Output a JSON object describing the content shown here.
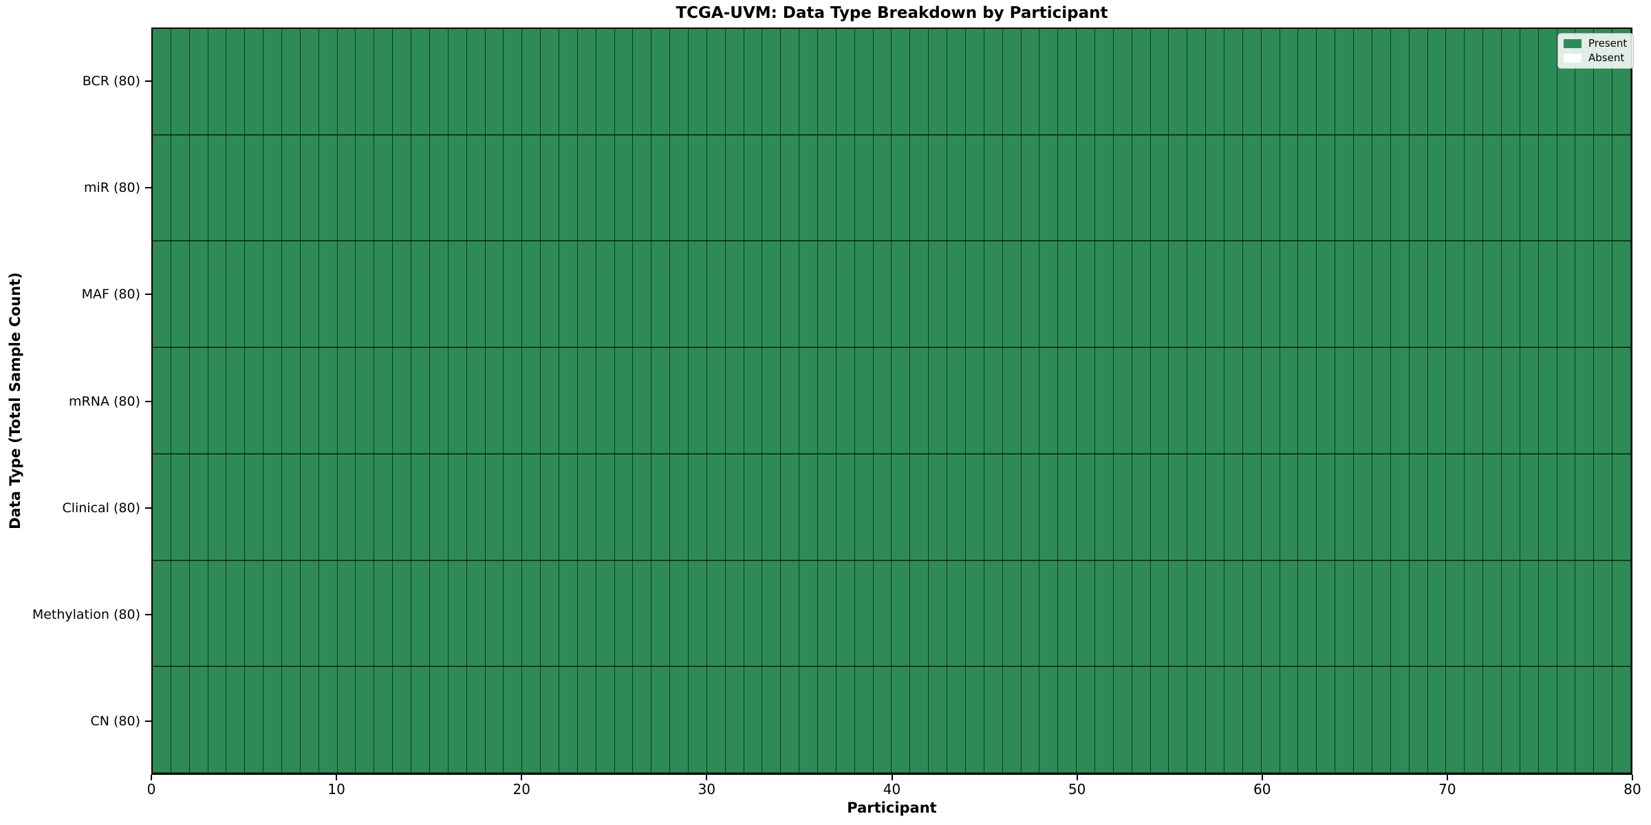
{
  "figure": {
    "title": "TCGA-UVM: Data Type Breakdown by Participant",
    "xlabel": "Participant",
    "ylabel": "Data Type (Total Sample Count)"
  },
  "legend": {
    "position": "upper right",
    "items": [
      {
        "label": "Present",
        "color": "#2e8b57"
      },
      {
        "label": "Absent",
        "color": "#ffffff"
      }
    ]
  },
  "chart_data": {
    "type": "heatmap",
    "title": "TCGA-UVM: Data Type Breakdown by Participant",
    "xlabel": "Participant",
    "ylabel": "Data Type (Total Sample Count)",
    "x_range": [
      0,
      80
    ],
    "x_ticks": [
      0,
      10,
      20,
      30,
      40,
      50,
      60,
      70,
      80
    ],
    "participant_count": 80,
    "rows": [
      {
        "label": "BCR (80)",
        "data_type": "BCR",
        "total_samples": 80,
        "present_count": 80,
        "absent_count": 0
      },
      {
        "label": "miR (80)",
        "data_type": "miR",
        "total_samples": 80,
        "present_count": 80,
        "absent_count": 0
      },
      {
        "label": "MAF (80)",
        "data_type": "MAF",
        "total_samples": 80,
        "present_count": 80,
        "absent_count": 0
      },
      {
        "label": "mRNA (80)",
        "data_type": "mRNA",
        "total_samples": 80,
        "present_count": 80,
        "absent_count": 0
      },
      {
        "label": "Clinical (80)",
        "data_type": "Clinical",
        "total_samples": 80,
        "present_count": 80,
        "absent_count": 0
      },
      {
        "label": "Methylation (80)",
        "data_type": "Methylation",
        "total_samples": 80,
        "present_count": 80,
        "absent_count": 0
      },
      {
        "label": "CN (80)",
        "data_type": "CN",
        "total_samples": 80,
        "present_count": 80,
        "absent_count": 0
      }
    ],
    "all_cells_present": true,
    "cell_states": [
      "Present",
      "Absent"
    ],
    "colors": {
      "present": "#2e8b57",
      "absent": "#ffffff",
      "cell_edge": "rgba(0,0,0,0.6)",
      "axis": "#000000"
    },
    "legend_entries": [
      "Present",
      "Absent"
    ],
    "legend_position": "upper right",
    "grid": "cell-borders"
  }
}
